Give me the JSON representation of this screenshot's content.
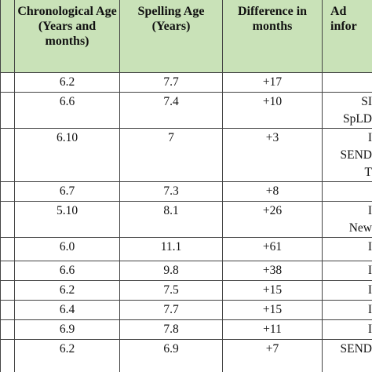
{
  "table": {
    "header": [
      "Chronological Age (Years and months)",
      "Spelling Age (Years)",
      "Difference in months",
      [
        "Ad",
        "infor"
      ]
    ],
    "rows": [
      {
        "chronological_age": "6.2",
        "spelling_age": "7.7",
        "difference": "+17",
        "notes": []
      },
      {
        "chronological_age": "6.6",
        "spelling_age": "7.4",
        "difference": "+10",
        "notes": [
          "SI",
          "SpLD"
        ]
      },
      {
        "chronological_age": "6.10",
        "spelling_age": "7",
        "difference": "+3",
        "notes": [
          "I",
          "SEND",
          "T"
        ]
      },
      {
        "chronological_age": "6.7",
        "spelling_age": "7.3",
        "difference": "+8",
        "notes": []
      },
      {
        "chronological_age": "5.10",
        "spelling_age": "8.1",
        "difference": "+26",
        "notes": [
          "I",
          "New"
        ]
      },
      {
        "chronological_age": "6.0",
        "spelling_age": "11.1",
        "difference": "+61",
        "notes": [
          "I"
        ]
      },
      {
        "chronological_age": "6.6",
        "spelling_age": "9.8",
        "difference": "+38",
        "notes": [
          "I"
        ]
      },
      {
        "chronological_age": "6.2",
        "spelling_age": "7.5",
        "difference": "+15",
        "notes": [
          "I"
        ]
      },
      {
        "chronological_age": "6.4",
        "spelling_age": "7.7",
        "difference": "+15",
        "notes": [
          "I"
        ]
      },
      {
        "chronological_age": "6.9",
        "spelling_age": "7.8",
        "difference": "+11",
        "notes": [
          "I"
        ]
      },
      {
        "chronological_age": "6.2",
        "spelling_age": "6.9",
        "difference": "+7",
        "notes": [
          "SEND"
        ]
      }
    ]
  }
}
